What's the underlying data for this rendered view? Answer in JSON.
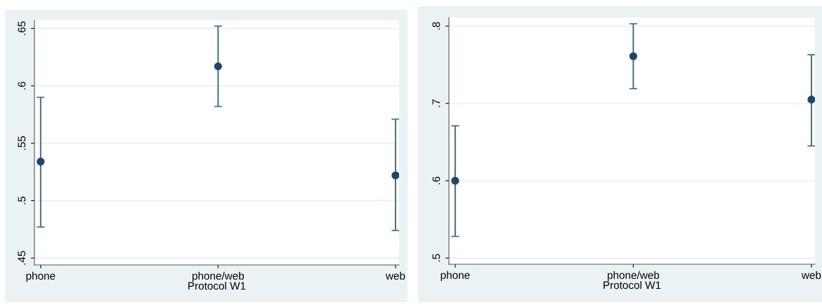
{
  "chart_data": [
    {
      "type": "scatter",
      "xlabel": "Protocol W1",
      "categories": [
        "phone",
        "phone/web",
        "web"
      ],
      "series": [
        {
          "color": "#1a476f",
          "values": [
            0.534,
            0.617,
            0.522
          ],
          "errors": [
            [
              0.477,
              0.59
            ],
            [
              0.582,
              0.652
            ],
            [
              0.474,
              0.571
            ]
          ]
        }
      ],
      "ylim": [
        0.444,
        0.657
      ],
      "yticks": [
        {
          "value": 0.45,
          "label": ".45"
        },
        {
          "value": 0.5,
          "label": ".5"
        },
        {
          "value": 0.55,
          "label": ".55"
        },
        {
          "value": 0.6,
          "label": ".6"
        },
        {
          "value": 0.65,
          "label": ".65"
        }
      ],
      "grid": "y",
      "marker": "circle"
    },
    {
      "type": "scatter",
      "xlabel": "Protocol W1",
      "categories": [
        "phone",
        "phone/web",
        "web"
      ],
      "series": [
        {
          "color": "#1a476f",
          "values": [
            0.6,
            0.761,
            0.705
          ],
          "errors": [
            [
              0.528,
              0.671
            ],
            [
              0.719,
              0.803
            ],
            [
              0.645,
              0.763
            ]
          ]
        }
      ],
      "ylim": [
        0.492,
        0.811
      ],
      "yticks": [
        {
          "value": 0.5,
          "label": ".5"
        },
        {
          "value": 0.6,
          "label": ".6"
        },
        {
          "value": 0.7,
          "label": ".7"
        },
        {
          "value": 0.8,
          "label": ".8"
        }
      ],
      "grid": "y",
      "marker": "circle"
    }
  ]
}
